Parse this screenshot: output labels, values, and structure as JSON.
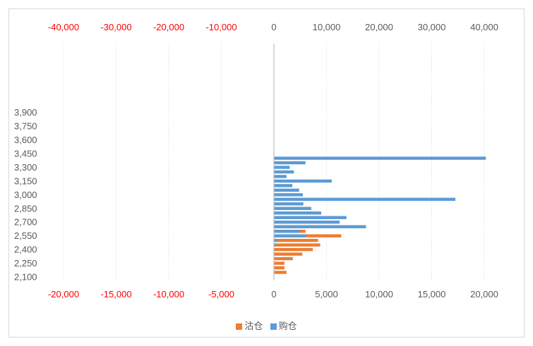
{
  "chart_data": {
    "type": "bar",
    "orientation": "horizontal",
    "y_categories": [
      2100,
      2150,
      2200,
      2250,
      2300,
      2350,
      2400,
      2450,
      2500,
      2550,
      2600,
      2650,
      2700,
      2750,
      2800,
      2850,
      2900,
      2950,
      3000,
      3050,
      3100,
      3150,
      3200,
      3250,
      3300,
      3350,
      3400,
      3450,
      3500,
      3550,
      3600,
      3650,
      3700,
      3750,
      3800,
      3850,
      3900
    ],
    "y_tick_labels": [
      "2,100",
      "2,250",
      "2,400",
      "2,550",
      "2,700",
      "2,850",
      "3,000",
      "3,150",
      "3,300",
      "3,450",
      "3,600",
      "3,750",
      "3,900"
    ],
    "x_bottom_ticks": [
      "-20,000",
      "-15,000",
      "-10,000",
      "-5,000",
      "0",
      "5,000",
      "10,000",
      "15,000",
      "20,000"
    ],
    "x_bottom_range": [
      -20000,
      20000
    ],
    "x_top_ticks": [
      "40,000",
      "30,000",
      "20,000",
      "10,000",
      "0",
      "-10,000",
      "-20,000",
      "-30,000",
      "-40,000"
    ],
    "x_top_range": [
      40000,
      -40000
    ],
    "series": [
      {
        "name": "沽仓",
        "color": "#ED7D31",
        "axis": "bottom",
        "values": [
          0,
          1200,
          1000,
          1000,
          1800,
          2700,
          3700,
          4400,
          4200,
          6400,
          3000,
          3200,
          1000,
          500,
          300,
          200,
          200,
          200,
          0,
          0,
          0,
          0,
          0,
          0,
          0,
          0,
          0,
          0,
          0,
          0,
          0,
          0,
          0,
          0,
          0,
          0,
          0
        ]
      },
      {
        "name": "购仓",
        "color": "#5B9BD5",
        "axis": "top",
        "values": [
          0,
          0,
          0,
          0,
          0,
          0,
          0,
          200,
          800,
          6000,
          4800,
          17500,
          12500,
          13800,
          9000,
          7100,
          5600,
          34500,
          5500,
          4800,
          3500,
          11000,
          2400,
          3800,
          3000,
          6000,
          40300,
          0,
          0,
          0,
          0,
          0,
          0,
          0,
          0,
          0,
          0
        ]
      }
    ],
    "grid": "vertical-dotted",
    "legend_position": "bottom",
    "tick_color_negative": "#FF0000"
  }
}
